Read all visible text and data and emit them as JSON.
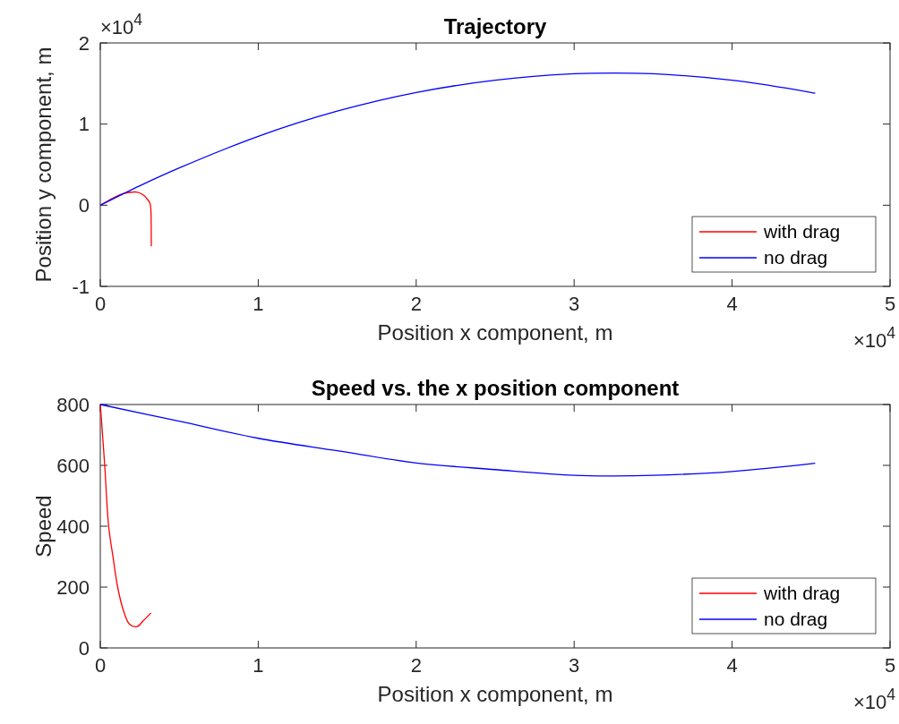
{
  "chart_data": [
    {
      "type": "line",
      "title": "Trajectory",
      "xlabel": "Position x component, m",
      "ylabel": "Position y component, m",
      "xlim": [
        0,
        5
      ],
      "ylim": [
        -1,
        2
      ],
      "xticks": [
        0,
        1,
        2,
        3,
        4,
        5
      ],
      "yticks": [
        -1,
        0,
        1,
        2
      ],
      "annotations": [
        "×10$^{4}$",
        "×10$^{4}$"
      ],
      "legend": "bottom right",
      "grid": false,
      "line_style": "solid",
      "series": [
        {
          "name": "with drag",
          "color": "#ff0000",
          "x": [
            0,
            0.05,
            0.1,
            0.15,
            0.2,
            0.23,
            0.27,
            0.3,
            0.315,
            0.32,
            0.322,
            0.323
          ],
          "values": [
            0,
            0.056,
            0.108,
            0.145,
            0.161,
            0.162,
            0.13,
            0.07,
            0.02,
            -0.05,
            -0.2,
            -0.507
          ]
        },
        {
          "name": "no drag",
          "color": "#0000ff",
          "x": [
            0,
            0.25,
            0.5,
            1,
            1.5,
            2,
            2.5,
            3,
            3.25,
            3.5,
            4,
            4.5,
            4.526
          ],
          "values": [
            0,
            0.24,
            0.46,
            0.85,
            1.16,
            1.39,
            1.54,
            1.62,
            1.63,
            1.62,
            1.54,
            1.39,
            1.38
          ]
        }
      ]
    },
    {
      "type": "line",
      "title": "Speed vs. the x position component",
      "xlabel": "Position x component, m",
      "ylabel": "Speed",
      "xlim": [
        0,
        5
      ],
      "ylim": [
        0,
        800
      ],
      "xticks": [
        0,
        1,
        2,
        3,
        4,
        5
      ],
      "yticks": [
        0,
        200,
        400,
        600,
        800
      ],
      "annotations": [
        "×10$^{4}$"
      ],
      "legend": "bottom right",
      "grid": false,
      "line_style": "solid",
      "series": [
        {
          "name": "with drag",
          "color": "#ff0000",
          "x": [
            0,
            0.006,
            0.028,
            0.053,
            0.081,
            0.11,
            0.147,
            0.185,
            0.233,
            0.27,
            0.321
          ],
          "values": [
            800,
            760,
            600,
            400,
            298,
            200,
            122,
            78,
            70,
            88,
            115
          ]
        },
        {
          "name": "no drag",
          "color": "#0000ff",
          "x": [
            0,
            0.5,
            1,
            1.5,
            2,
            2.5,
            3,
            3.25,
            3.5,
            4,
            4.526
          ],
          "values": [
            800,
            745,
            689,
            648,
            608,
            586,
            567,
            565,
            567,
            580,
            607
          ]
        }
      ]
    }
  ]
}
